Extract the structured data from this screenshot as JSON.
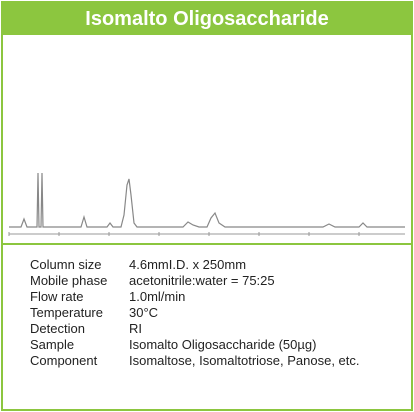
{
  "title": "Isomalto Oligosaccharide",
  "conditions": [
    {
      "label": "Column size",
      "value": "4.6mmI.D. x 250mm"
    },
    {
      "label": "Mobile phase",
      "value": "acetonitrile:water = 75:25"
    },
    {
      "label": "Flow rate",
      "value": "1.0ml/min"
    },
    {
      "label": "Temperature",
      "value": "30°C"
    },
    {
      "label": "Detection",
      "value": "RI"
    },
    {
      "label": "Sample",
      "value": "Isomalto Oligosaccharide (50µg)"
    },
    {
      "label": "Component",
      "value": "Isomaltose, Isomaltotriose, Panose, etc."
    }
  ]
}
